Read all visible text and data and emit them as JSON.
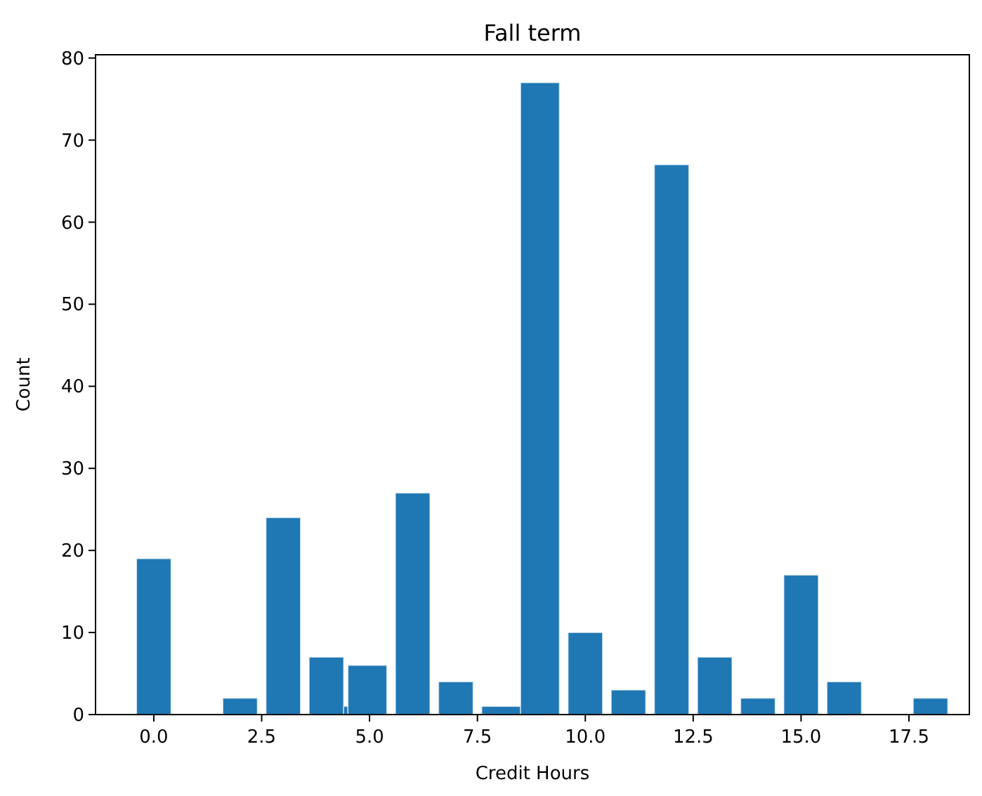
{
  "chart_data": {
    "type": "histogram",
    "title": "Fall term",
    "xlabel": "Credit Hours",
    "ylabel": "Count",
    "bins": [
      -0.4,
      0.4,
      1.6,
      2.4,
      2.6,
      3.4,
      3.6,
      4.4,
      4.5,
      5.4,
      5.6,
      6.4,
      6.6,
      7.4,
      7.6,
      8.5,
      9.4,
      9.6,
      10.4,
      10.6,
      11.4,
      11.6,
      12.4,
      12.6,
      13.4,
      13.6,
      14.4,
      14.6,
      15.4,
      15.6,
      16.4,
      17.6,
      18.4
    ],
    "values": [
      19,
      0,
      2,
      0,
      24,
      0,
      7,
      1,
      6,
      0,
      27,
      0,
      4,
      0,
      1,
      77,
      0,
      10,
      0,
      3,
      0,
      67,
      0,
      7,
      0,
      2,
      0,
      17,
      0,
      4,
      0,
      2
    ],
    "color": "#1f77b4",
    "xlim": [
      -1.35,
      18.9
    ],
    "xticks": [
      {
        "value": 0,
        "label": "0.0"
      },
      {
        "value": 2.5,
        "label": "2.5"
      },
      {
        "value": 5,
        "label": "5.0"
      },
      {
        "value": 7.5,
        "label": "7.5"
      },
      {
        "value": 10,
        "label": "10.0"
      },
      {
        "value": 12.5,
        "label": "12.5"
      },
      {
        "value": 15,
        "label": "15.0"
      },
      {
        "value": 17.5,
        "label": "17.5"
      }
    ],
    "ylim": [
      0,
      80.4
    ],
    "yticks": [
      0,
      10,
      20,
      30,
      40,
      50,
      60,
      70,
      80
    ],
    "grid": false
  }
}
